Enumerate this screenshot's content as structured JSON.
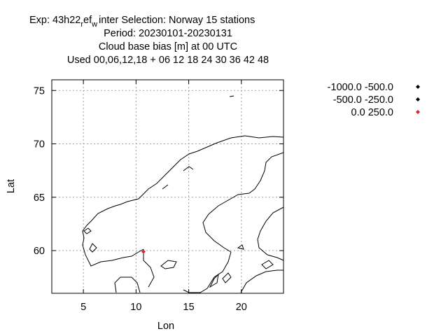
{
  "header": {
    "line1_a": "Exp: 43h22",
    "line1_sub1": "r",
    "line1_b": "ef",
    "line1_sub2": "w",
    "line1_c": "inter   Selection: Norway     15 stations",
    "line2": "Period: 20230101-20230131",
    "line3": "Cloud base bias [m] at  00 UTC",
    "line4": "Used  00,06,12,18  + 06 12 18 24 30 36 42 48"
  },
  "chart_data": {
    "type": "scatter",
    "title": "Cloud base bias [m] at  00 UTC",
    "xlabel": "Lon",
    "ylabel": "Lat",
    "xlim": [
      2,
      24
    ],
    "ylim": [
      56,
      76
    ],
    "xticks": [
      5,
      10,
      15,
      20
    ],
    "yticks": [
      60,
      65,
      70,
      75
    ],
    "grid": true,
    "legend_position": "top-right",
    "legend": [
      {
        "label": "-1000.0 -500.0",
        "color": "#000000"
      },
      {
        "label": "-500.0 -250.0",
        "color": "#000000"
      },
      {
        "label": "0.0 250.0",
        "color": "#d62728"
      }
    ],
    "series": [
      {
        "legend_index": 2,
        "points": [
          {
            "lon": 10.7,
            "lat": 59.9
          }
        ]
      }
    ]
  }
}
